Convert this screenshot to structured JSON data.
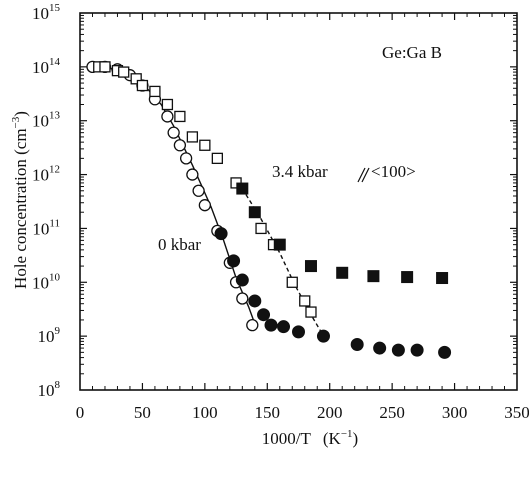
{
  "chart_data": {
    "type": "scatter",
    "xlabel": "1000/T",
    "xlabel_unit": "(K",
    "xlabel_unit_sup": "−1",
    "xlabel_unit_close": ")",
    "ylabel": "Hole concentration (cm",
    "ylabel_sup": "−3",
    "ylabel_close": ")",
    "xlim": [
      0,
      350
    ],
    "ylim_log10": [
      8,
      15
    ],
    "y_scale": "log",
    "x_ticks": [
      "0",
      "50",
      "100",
      "150",
      "200",
      "250",
      "300",
      "350"
    ],
    "y_tick_base": "10",
    "y_tick_exps": [
      "8",
      "9",
      "10",
      "11",
      "12",
      "13",
      "14",
      "15"
    ],
    "annotation_sample": "Ge:Ga  B",
    "series": [
      {
        "name": "0 kbar",
        "marker": "open-circle",
        "points": [
          [
            10,
            100000000000000.0
          ],
          [
            20,
            100000000000000.0
          ],
          [
            30,
            90000000000000.0
          ],
          [
            40,
            70000000000000.0
          ],
          [
            50,
            45000000000000.0
          ],
          [
            60,
            25000000000000.0
          ],
          [
            70,
            12000000000000.0
          ],
          [
            75,
            6000000000000.0
          ],
          [
            80,
            3500000000000.0
          ],
          [
            85,
            2000000000000.0
          ],
          [
            90,
            1000000000000.0
          ],
          [
            95,
            500000000000.0
          ],
          [
            100,
            270000000000.0
          ],
          [
            110,
            90000000000.0
          ],
          [
            120,
            23000000000.0
          ],
          [
            125,
            10000000000.0
          ],
          [
            130,
            5000000000.0
          ],
          [
            138,
            1600000000.0
          ]
        ]
      },
      {
        "name": "0 kbar",
        "marker": "filled-circle",
        "points": [
          [
            113,
            80000000000.0
          ],
          [
            123,
            25000000000.0
          ],
          [
            130,
            11000000000.0
          ],
          [
            140,
            4500000000.0
          ],
          [
            147,
            2500000000.0
          ],
          [
            153,
            1600000000.0
          ],
          [
            163,
            1500000000.0
          ],
          [
            175,
            1200000000.0
          ],
          [
            195,
            1000000000.0
          ],
          [
            222,
            700000000.0
          ],
          [
            240,
            600000000.0
          ],
          [
            255,
            550000000.0
          ],
          [
            270,
            550000000.0
          ],
          [
            292,
            500000000.0
          ]
        ]
      },
      {
        "name": "3.4 kbar // <100>",
        "marker": "open-square",
        "points": [
          [
            15,
            100000000000000.0
          ],
          [
            20,
            100000000000000.0
          ],
          [
            30,
            85000000000000.0
          ],
          [
            35,
            80000000000000.0
          ],
          [
            45,
            60000000000000.0
          ],
          [
            50,
            45000000000000.0
          ],
          [
            60,
            35000000000000.0
          ],
          [
            70,
            20000000000000.0
          ],
          [
            80,
            12000000000000.0
          ],
          [
            90,
            5000000000000.0
          ],
          [
            100,
            3500000000000.0
          ],
          [
            110,
            2000000000000.0
          ],
          [
            125,
            700000000000.0
          ],
          [
            145,
            100000000000.0
          ],
          [
            155,
            50000000000.0
          ],
          [
            170,
            10000000000.0
          ],
          [
            180,
            4500000000.0
          ],
          [
            185,
            2800000000.0
          ]
        ]
      },
      {
        "name": "3.4 kbar // <100>",
        "marker": "filled-square",
        "points": [
          [
            130,
            550000000000.0
          ],
          [
            140,
            200000000000.0
          ],
          [
            160,
            50000000000.0
          ],
          [
            185,
            20000000000.0
          ],
          [
            210,
            15000000000.0
          ],
          [
            235,
            13000000000.0
          ],
          [
            262,
            12500000000.0
          ],
          [
            290,
            12000000000.0
          ]
        ]
      }
    ],
    "fit_solid": [
      [
        10,
        100000000000000.0
      ],
      [
        30,
        90000000000000.0
      ],
      [
        50,
        50000000000000.0
      ],
      [
        65,
        20000000000000.0
      ],
      [
        75,
        8000000000000.0
      ],
      [
        90,
        1500000000000.0
      ],
      [
        105,
        250000000000.0
      ],
      [
        115,
        60000000000.0
      ],
      [
        125,
        12000000000.0
      ],
      [
        135,
        3500000000.0
      ],
      [
        140,
        1700000000.0
      ]
    ],
    "fit_dashed": [
      [
        130,
        550000000000.0
      ],
      [
        145,
        150000000000.0
      ],
      [
        160,
        35000000000.0
      ],
      [
        172,
        9000000000.0
      ],
      [
        185,
        2500000000.0
      ],
      [
        195,
        1000000000.0
      ]
    ],
    "labels": {
      "series_0kbar": "0 kbar",
      "series_34kbar": "3.4 kbar",
      "series_34kbar_dir": "<100>"
    }
  }
}
